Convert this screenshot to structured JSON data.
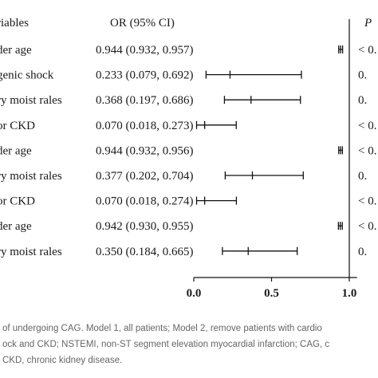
{
  "chart_data": {
    "type": "forest",
    "headers": {
      "variable": "riables",
      "or_ci": "OR (95% CI)",
      "p": "P"
    },
    "rows": [
      {
        "variable": "der age",
        "or_text": "0.944 (0.932, 0.957)",
        "or": 0.944,
        "lo": 0.932,
        "hi": 0.957,
        "p_text": "< 0."
      },
      {
        "variable": "genic shock",
        "or_text": "0.233 (0.079, 0.692)",
        "or": 0.233,
        "lo": 0.079,
        "hi": 0.692,
        "p_text": "0."
      },
      {
        "variable": "ry moist rales",
        "or_text": "0.368 (0.197, 0.686)",
        "or": 0.368,
        "lo": 0.197,
        "hi": 0.686,
        "p_text": "0."
      },
      {
        "variable": "or CKD",
        "or_text": "0.070 (0.018, 0.273)",
        "or": 0.07,
        "lo": 0.018,
        "hi": 0.273,
        "p_text": "< 0."
      },
      {
        "variable": "der age",
        "or_text": "0.944 (0.932, 0.956)",
        "or": 0.944,
        "lo": 0.932,
        "hi": 0.956,
        "p_text": "< 0."
      },
      {
        "variable": "ry moist rales",
        "or_text": "0.377 (0.202, 0.704)",
        "or": 0.377,
        "lo": 0.202,
        "hi": 0.704,
        "p_text": "0."
      },
      {
        "variable": "or CKD",
        "or_text": "0.070 (0.018, 0.274)",
        "or": 0.07,
        "lo": 0.018,
        "hi": 0.274,
        "p_text": "< 0."
      },
      {
        "variable": "der age",
        "or_text": "0.942 (0.930, 0.955)",
        "or": 0.942,
        "lo": 0.93,
        "hi": 0.955,
        "p_text": "< 0."
      },
      {
        "variable": "ry moist rales",
        "or_text": "0.350 (0.184, 0.665)",
        "or": 0.35,
        "lo": 0.184,
        "hi": 0.665,
        "p_text": "0."
      }
    ],
    "x_ticks": [
      "0.0",
      "0.5",
      "1.0"
    ],
    "xlim": [
      0,
      1.05
    ],
    "reference_line": 1.0,
    "caption_lines": [
      "of undergoing CAG. Model 1, all patients; Model 2, remove patients with cardio",
      "ock and CKD; NSTEMI, non-ST segment elevation myocardial infarction; CAG, c",
      "CKD, chronic kidney disease."
    ]
  }
}
